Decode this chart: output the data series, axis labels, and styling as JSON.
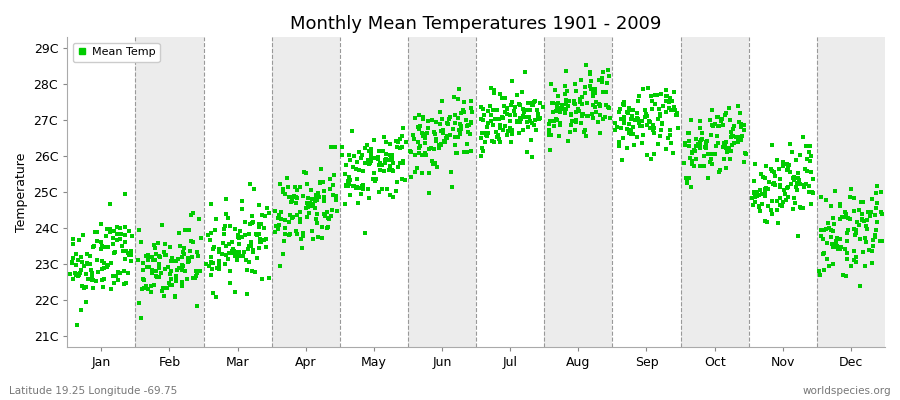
{
  "title": "Monthly Mean Temperatures 1901 - 2009",
  "ylabel": "Temperature",
  "xlabel_labels": [
    "Jan",
    "Feb",
    "Mar",
    "Apr",
    "May",
    "Jun",
    "Jul",
    "Aug",
    "Sep",
    "Oct",
    "Nov",
    "Dec"
  ],
  "ytick_labels": [
    "21C",
    "22C",
    "23C",
    "24C",
    "25C",
    "26C",
    "27C",
    "28C",
    "29C"
  ],
  "ytick_values": [
    21,
    22,
    23,
    24,
    25,
    26,
    27,
    28,
    29
  ],
  "ylim": [
    20.7,
    29.3
  ],
  "legend_label": "Mean Temp",
  "marker_color": "#00CC00",
  "marker": "s",
  "marker_size": 3.5,
  "background_color": "#FFFFFF",
  "alt_band_color": "#ECECEC",
  "dashed_line_color": "#999999",
  "footer_left": "Latitude 19.25 Longitude -69.75",
  "footer_right": "worldspecies.org",
  "years": 109,
  "monthly_means": [
    23.1,
    22.9,
    23.6,
    24.6,
    25.7,
    26.5,
    27.1,
    27.3,
    27.0,
    26.4,
    25.2,
    23.9
  ],
  "monthly_stds": [
    0.6,
    0.6,
    0.55,
    0.55,
    0.5,
    0.5,
    0.45,
    0.45,
    0.5,
    0.5,
    0.55,
    0.6
  ],
  "seed": 42
}
